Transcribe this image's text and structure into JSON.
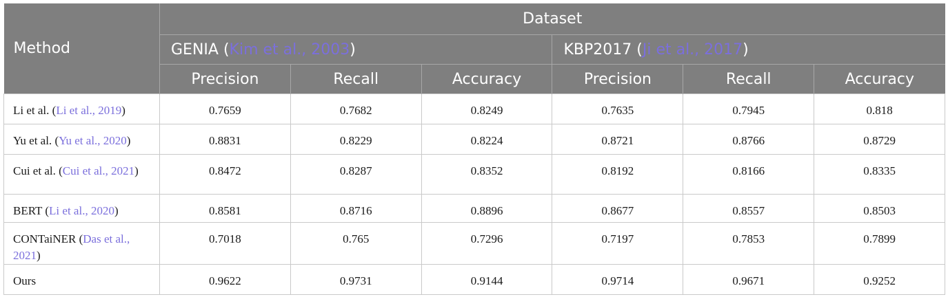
{
  "header": {
    "method": "Method",
    "dataset": "Dataset",
    "groups": [
      {
        "name": "GENIA",
        "open": " (",
        "cite": "Kim et al., 2003",
        "close": ")"
      },
      {
        "name": "KBP2017",
        "open": " (",
        "cite": "Ji et al., 2017",
        "close": ")"
      }
    ],
    "metrics": [
      "Precision",
      "Recall",
      "Accuracy",
      "Precision",
      "Recall",
      "Accuracy"
    ]
  },
  "rows": [
    {
      "method": "Li et al.",
      "open": " (",
      "cite": "Li et al., 2019",
      "close": ")",
      "values": [
        "0.7659",
        "0.7682",
        "0.8249",
        "0.7635",
        "0.7945",
        "0.818"
      ]
    },
    {
      "method": "Yu et al.",
      "open": " (",
      "cite": "Yu et al., 2020",
      "close": ")",
      "values": [
        "0.8831",
        "0.8229",
        "0.8224",
        "0.8721",
        "0.8766",
        "0.8729"
      ]
    },
    {
      "method": "Cui et al.",
      "open": " (",
      "cite": "Cui et al., 2021",
      "close": ")",
      "values": [
        "0.8472",
        "0.8287",
        "0.8352",
        "0.8192",
        "0.8166",
        "0.8335"
      ]
    },
    {
      "method": "BERT",
      "open": " (",
      "cite": "Li et al., 2020",
      "close": ")",
      "values": [
        "0.8581",
        "0.8716",
        "0.8896",
        "0.8677",
        "0.8557",
        "0.8503"
      ]
    },
    {
      "method": "CONTaiNER",
      "open": " (",
      "cite": "Das et al., 2021",
      "close": ")",
      "values": [
        "0.7018",
        "0.765",
        "0.7296",
        "0.7197",
        "0.7853",
        "0.7899"
      ]
    },
    {
      "method": "Ours",
      "open": "",
      "cite": "",
      "close": "",
      "values": [
        "0.9622",
        "0.9731",
        "0.9144",
        "0.9714",
        "0.9671",
        "0.9252"
      ]
    }
  ],
  "colors": {
    "header_bg": "#7f7f7f",
    "header_text": "#ffffff",
    "citation": "#7b6fdc",
    "border": "#c9c9c9"
  }
}
